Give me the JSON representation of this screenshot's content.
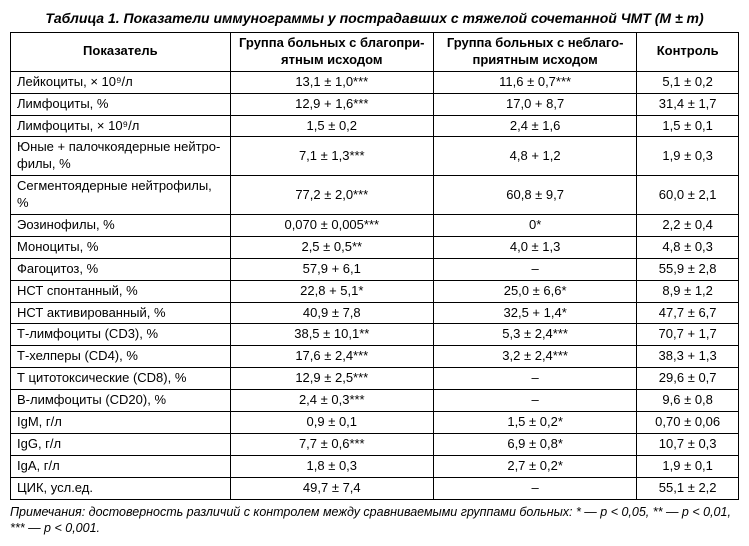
{
  "title": "Таблица 1. Показатели иммунограммы у пострадавших с тяжелой сочетанной ЧМТ (M ± т)",
  "headers": {
    "indicator": "Показатель",
    "group1": "Группа больных с благопри-ятным исходом",
    "group2": "Группа больных с неблаго-приятным исходом",
    "control": "Контроль"
  },
  "rows": [
    {
      "ind": "Лейкоциты, × 10⁹/л",
      "g1": "13,1 ± 1,0***",
      "g2": "11,6 ± 0,7***",
      "ctl": "5,1 ± 0,2"
    },
    {
      "ind": "Лимфоциты, %",
      "g1": "12,9 + 1,6***",
      "g2": "17,0 + 8,7",
      "ctl": "31,4 ± 1,7"
    },
    {
      "ind": "Лимфоциты, × 10⁹/л",
      "g1": "1,5 ± 0,2",
      "g2": "2,4 ± 1,6",
      "ctl": "1,5 ± 0,1"
    },
    {
      "ind": "Юные + палочкоядерные нейтро-филы, %",
      "g1": "7,1 ± 1,3***",
      "g2": "4,8 + 1,2",
      "ctl": "1,9 ± 0,3"
    },
    {
      "ind": "Сегментоядерные нейтрофилы, %",
      "g1": "77,2 ± 2,0***",
      "g2": "60,8 ± 9,7",
      "ctl": "60,0 ± 2,1"
    },
    {
      "ind": "Эозинофилы, %",
      "g1": "0,070 ± 0,005***",
      "g2": "0*",
      "ctl": "2,2 ± 0,4"
    },
    {
      "ind": "Моноциты, %",
      "g1": "2,5 ± 0,5**",
      "g2": "4,0 ± 1,3",
      "ctl": "4,8 ± 0,3"
    },
    {
      "ind": "Фагоцитоз, %",
      "g1": "57,9 + 6,1",
      "g2": "–",
      "ctl": "55,9 ± 2,8"
    },
    {
      "ind": "НСТ спонтанный, %",
      "g1": "22,8 + 5,1*",
      "g2": "25,0 ± 6,6*",
      "ctl": "8,9 ± 1,2"
    },
    {
      "ind": "НСТ активированный, %",
      "g1": "40,9 ± 7,8",
      "g2": "32,5 + 1,4*",
      "ctl": "47,7 ± 6,7"
    },
    {
      "ind": "Т-лимфоциты (CD3), %",
      "g1": "38,5 ± 10,1**",
      "g2": "5,3 ± 2,4***",
      "ctl": "70,7 + 1,7"
    },
    {
      "ind": "Т-хелперы (CD4), %",
      "g1": "17,6 ± 2,4***",
      "g2": "3,2 ± 2,4***",
      "ctl": "38,3 + 1,3"
    },
    {
      "ind": "Т цитотоксические (CD8), %",
      "g1": "12,9 ± 2,5***",
      "g2": "–",
      "ctl": "29,6 ± 0,7"
    },
    {
      "ind": "В-лимфоциты (CD20), %",
      "g1": "2,4 ± 0,3***",
      "g2": "–",
      "ctl": "9,6 ± 0,8"
    },
    {
      "ind": "IgM, г/л",
      "g1": "0,9 ± 0,1",
      "g2": "1,5 ± 0,2*",
      "ctl": "0,70 ± 0,06"
    },
    {
      "ind": "IgG, г/л",
      "g1": "7,7 ± 0,6***",
      "g2": "6,9 ± 0,8*",
      "ctl": "10,7 ± 0,3"
    },
    {
      "ind": "IgA, г/л",
      "g1": "1,8 ± 0,3",
      "g2": "2,7 ± 0,2*",
      "ctl": "1,9 ± 0,1"
    },
    {
      "ind": "ЦИК, усл.ед.",
      "g1": "49,7 ± 7,4",
      "g2": "–",
      "ctl": "55,1 ± 2,2"
    }
  ],
  "footnote": "Примечания: достоверность различий с контролем между сравниваемыми группами больных: * — p < 0,05, ** — p < 0,01, *** — p < 0,001."
}
